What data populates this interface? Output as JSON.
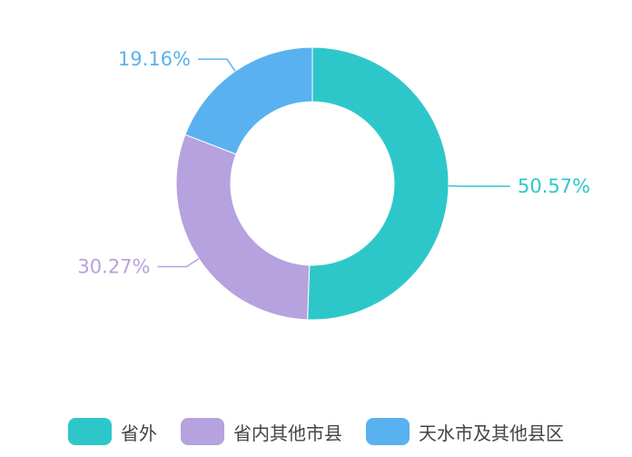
{
  "chart_data": {
    "type": "pie",
    "variant": "donut",
    "legend_position": "bottom",
    "series": [
      {
        "name": "省外",
        "value": 50.57,
        "label": "50.57%",
        "color": "#2EC7C9"
      },
      {
        "name": "省内其他市县",
        "value": 30.27,
        "label": "30.27%",
        "color": "#B6A2DE"
      },
      {
        "name": "天水市及其他县区",
        "value": 19.16,
        "label": "19.16%",
        "color": "#5AB1EF"
      }
    ]
  }
}
